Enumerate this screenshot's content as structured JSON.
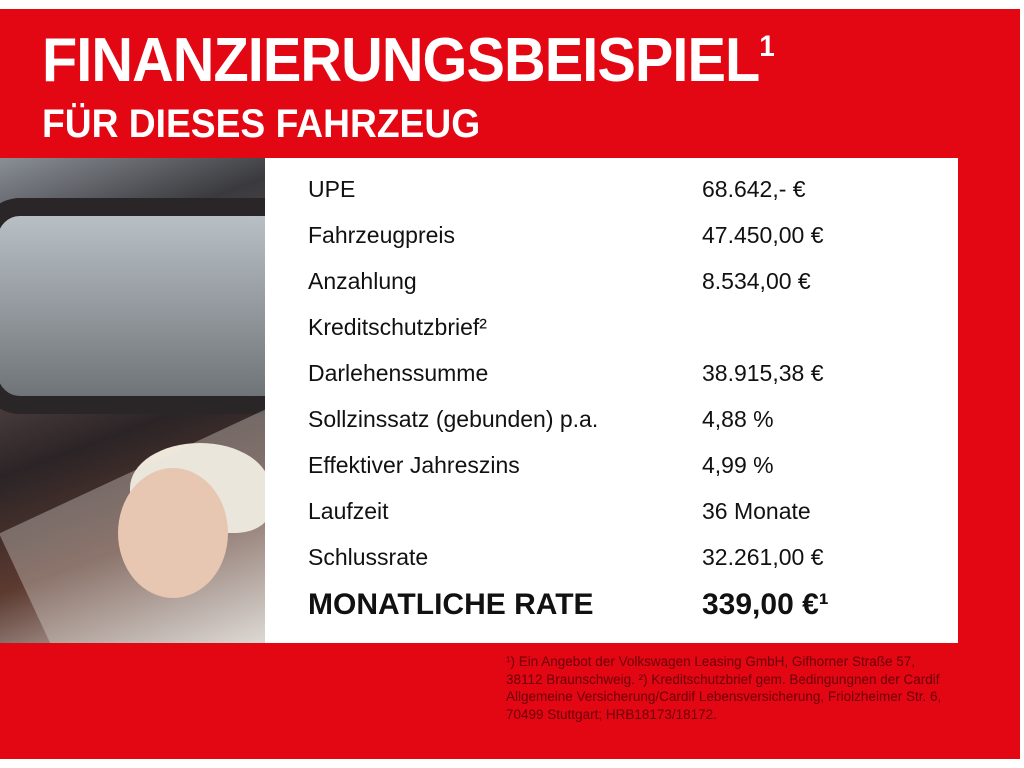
{
  "header": {
    "title": "FINANZIERUNGSBEISPIEL",
    "title_sup": "1",
    "subtitle": "FÜR DIESES FAHRZEUG"
  },
  "colors": {
    "brand_red": "#e30613",
    "table_bg": "#ffffff"
  },
  "rows": [
    {
      "label": "UPE",
      "value": "68.642,- €"
    },
    {
      "label": "Fahrzeugpreis",
      "value": "47.450,00 €"
    },
    {
      "label": "Anzahlung",
      "value": "8.534,00 €"
    },
    {
      "label": "Kreditschutzbrief²",
      "value": ""
    },
    {
      "label": "Darlehenssumme",
      "value": "38.915,38 €"
    },
    {
      "label": "Sollzinssatz (gebunden) p.a.",
      "value": "4,88 %"
    },
    {
      "label": "Effektiver Jahreszins",
      "value": "4,99 %"
    },
    {
      "label": "Laufzeit",
      "value": "36 Monate"
    },
    {
      "label": "Schlussrate",
      "value": "32.261,00 €"
    }
  ],
  "total": {
    "label": "MONATLICHE RATE",
    "value": "339,00 €¹"
  },
  "footnote": "¹) Ein Angebot der Volkswagen Leasing GmbH, Gifhorner Straße 57, 38112 Braunschweig. ²) Kreditschutzbrief gem. Bedingungnen der Cardif Allgemeine Versicherung/Cardif Lebensversicherung, Friolzheimer Str. 6, 70499 Stuttgart; HRB18173/18172."
}
